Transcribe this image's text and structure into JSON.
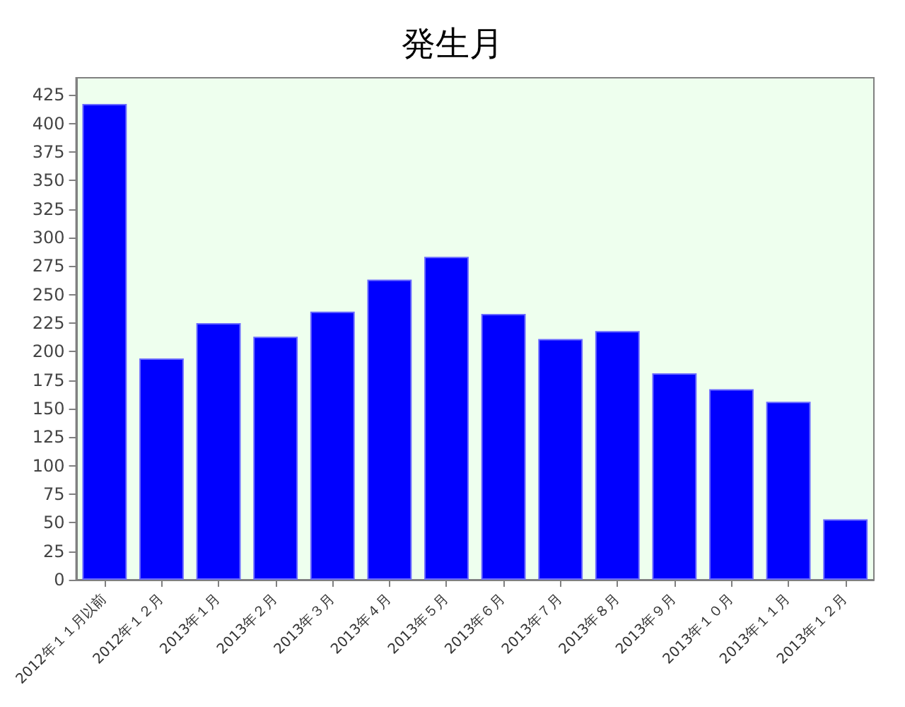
{
  "chart_data": {
    "type": "bar",
    "title": "発生月",
    "categories": [
      "2012年１１月以前",
      "2012年１２月",
      "2013年１月",
      "2013年２月",
      "2013年３月",
      "2013年４月",
      "2013年５月",
      "2013年６月",
      "2013年７月",
      "2013年８月",
      "2013年９月",
      "2013年１０月",
      "2013年１１月",
      "2013年１２月"
    ],
    "values": [
      417,
      194,
      225,
      213,
      235,
      263,
      283,
      233,
      211,
      218,
      181,
      167,
      156,
      53
    ],
    "color": "#0000ff",
    "ylim": [
      0,
      440
    ],
    "yticks": [
      0,
      25,
      50,
      75,
      100,
      125,
      150,
      175,
      200,
      225,
      250,
      275,
      300,
      325,
      350,
      375,
      400,
      425
    ],
    "grid": false
  }
}
